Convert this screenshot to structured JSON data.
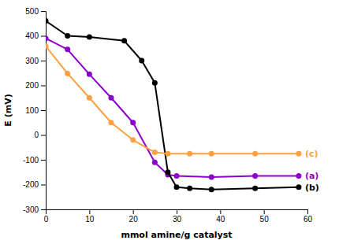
{
  "chart_data": {
    "type": "line",
    "xlabel": "mmol amine/g catalyst",
    "ylabel": "E (mV)",
    "xlim": [
      0,
      60
    ],
    "ylim": [
      -300,
      500
    ],
    "xticks": [
      0,
      10,
      20,
      30,
      40,
      50,
      60
    ],
    "yticks": [
      -300,
      -200,
      -100,
      0,
      100,
      200,
      300,
      400,
      500
    ],
    "grid": false,
    "marker": "circle",
    "series": [
      {
        "name": "(a)",
        "color": "#8B00CC",
        "x": [
          0,
          5,
          10,
          15,
          20,
          25,
          28,
          30,
          38,
          48,
          58
        ],
        "values": [
          390,
          345,
          245,
          150,
          50,
          -110,
          -160,
          -165,
          -170,
          -165,
          -165
        ]
      },
      {
        "name": "(b)",
        "color": "#000000",
        "x": [
          0,
          5,
          10,
          18,
          22,
          25,
          28,
          30,
          33,
          38,
          48,
          58
        ],
        "values": [
          460,
          400,
          395,
          380,
          300,
          210,
          -150,
          -210,
          -215,
          -220,
          -215,
          -210
        ]
      },
      {
        "name": "(c)",
        "color": "#FFA040",
        "x": [
          0,
          5,
          10,
          15,
          20,
          25,
          28,
          33,
          38,
          48,
          58
        ],
        "values": [
          358,
          248,
          150,
          50,
          -20,
          -70,
          -75,
          -75,
          -75,
          -75,
          -75
        ]
      }
    ]
  }
}
